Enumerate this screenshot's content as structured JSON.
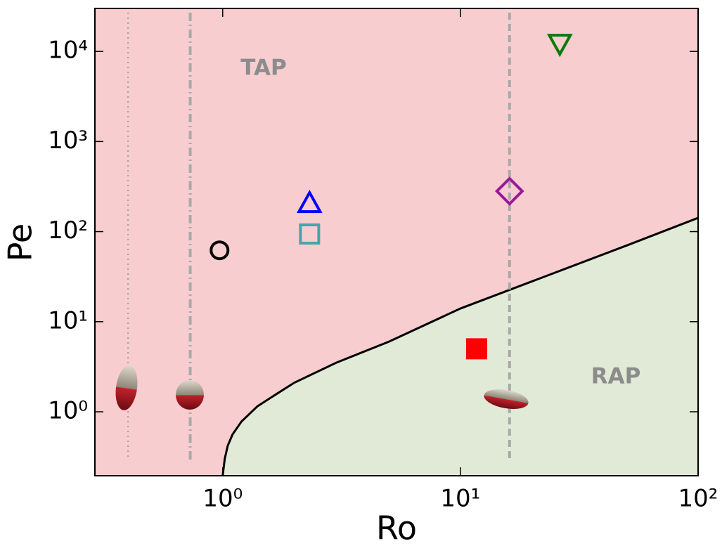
{
  "chart_data": {
    "type": "scatter",
    "x_label": "Ro",
    "y_label": "Pe",
    "xscale": "log",
    "yscale": "log",
    "xlim": [
      0.29,
      100
    ],
    "ylim": [
      0.195,
      30000
    ],
    "xticks": [
      {
        "value": 1,
        "label": "10⁰"
      },
      {
        "value": 10,
        "label": "10¹"
      },
      {
        "value": 100,
        "label": "10²"
      }
    ],
    "yticks": [
      {
        "value": 1,
        "label": "10⁰"
      },
      {
        "value": 10,
        "label": "10¹"
      },
      {
        "value": 100,
        "label": "10²"
      },
      {
        "value": 1000,
        "label": "10³"
      },
      {
        "value": 10000,
        "label": "10⁴"
      }
    ],
    "regions": {
      "above": "#f8cdd0",
      "below": "#e1ead6"
    },
    "boundary": {
      "color": "#000000",
      "x": [
        1,
        1.02,
        1.05,
        1.1,
        1.2,
        1.4,
        1.7,
        2,
        3,
        5,
        10,
        20,
        50,
        100
      ],
      "values": [
        0.195,
        0.3,
        0.42,
        0.56,
        0.78,
        1.15,
        1.6,
        2.1,
        3.5,
        6,
        14,
        28,
        70,
        142
      ]
    },
    "reference_lines": [
      {
        "x": 0.4,
        "style": "dotted",
        "color": "#a9a9a9"
      },
      {
        "x": 0.73,
        "style": "dashdot",
        "color": "#a9a9a9"
      },
      {
        "x": 16.1,
        "style": "dashed",
        "color": "#a9a9a9"
      }
    ],
    "series": [
      {
        "marker": "circle",
        "filled": false,
        "color": "#000000",
        "x": [
          0.97
        ],
        "values": [
          62
        ]
      },
      {
        "marker": "triangle-up",
        "filled": false,
        "color": "#0000ff",
        "x": [
          2.32
        ],
        "values": [
          207
        ]
      },
      {
        "marker": "square",
        "filled": false,
        "color": "#40a8a8",
        "x": [
          2.32
        ],
        "values": [
          94
        ]
      },
      {
        "marker": "diamond",
        "filled": false,
        "color": "#9a1a9a",
        "x": [
          16.1
        ],
        "values": [
          281
        ]
      },
      {
        "marker": "triangle-down",
        "filled": false,
        "color": "#0a7a0a",
        "x": [
          26.2
        ],
        "values": [
          12200
        ]
      },
      {
        "marker": "square",
        "filled": true,
        "color": "#ff0000",
        "x": [
          11.7
        ],
        "values": [
          5.0
        ]
      }
    ],
    "annotations": [
      "TAP",
      "RAP"
    ]
  }
}
